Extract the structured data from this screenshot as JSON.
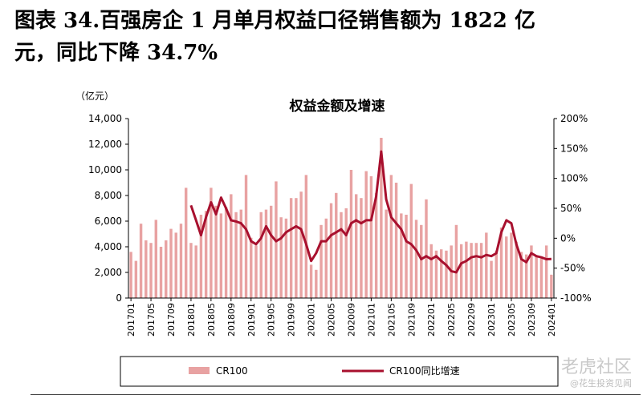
{
  "figure": {
    "heading_line1": "图表 34.百强房企 1 月单月权益口径销售额为 1822 亿",
    "heading_line2": "元，同比下降 34.7%"
  },
  "watermark": {
    "main": "老虎社区",
    "sub": "@花生投资见闻"
  },
  "chart_data": {
    "type": "bar+line",
    "title": "权益金额及增速",
    "y_unit": "（亿元）",
    "ylim_left": [
      0,
      14000
    ],
    "yticks_left": [
      "0",
      "2,000",
      "4,000",
      "6,000",
      "8,000",
      "10,000",
      "12,000",
      "14,000"
    ],
    "ylim_right": [
      -100,
      200
    ],
    "yticks_right": [
      "-100%",
      "-50%",
      "0%",
      "50%",
      "100%",
      "150%",
      "200%"
    ],
    "xtick_labels": [
      "201701",
      "201705",
      "201709",
      "201801",
      "201805",
      "201809",
      "201901",
      "201905",
      "201909",
      "202001",
      "202005",
      "202009",
      "202101",
      "202105",
      "202109",
      "202201",
      "202205",
      "202209",
      "202301",
      "202305",
      "202309",
      "202401"
    ],
    "grid": false,
    "legend_position": "bottom",
    "colors": {
      "bar": "#e8a2a2",
      "line": "#a8102e"
    },
    "x": [
      "201701",
      "201702",
      "201703",
      "201704",
      "201705",
      "201706",
      "201707",
      "201708",
      "201709",
      "201710",
      "201711",
      "201712",
      "201801",
      "201802",
      "201803",
      "201804",
      "201805",
      "201806",
      "201807",
      "201808",
      "201809",
      "201810",
      "201811",
      "201812",
      "201901",
      "201902",
      "201903",
      "201904",
      "201905",
      "201906",
      "201907",
      "201908",
      "201909",
      "201910",
      "201911",
      "201912",
      "202001",
      "202002",
      "202003",
      "202004",
      "202005",
      "202006",
      "202007",
      "202008",
      "202009",
      "202010",
      "202011",
      "202012",
      "202101",
      "202102",
      "202103",
      "202104",
      "202105",
      "202106",
      "202107",
      "202108",
      "202109",
      "202110",
      "202111",
      "202112",
      "202201",
      "202202",
      "202203",
      "202204",
      "202205",
      "202206",
      "202207",
      "202208",
      "202209",
      "202210",
      "202211",
      "202212",
      "202301",
      "202302",
      "202303",
      "202304",
      "202305",
      "202306",
      "202307",
      "202308",
      "202309",
      "202310",
      "202311",
      "202312",
      "202401"
    ],
    "series": [
      {
        "name": "CR100",
        "type": "bar",
        "values": [
          3600,
          2900,
          5800,
          4500,
          4300,
          6100,
          4000,
          4500,
          5400,
          5100,
          5800,
          8600,
          4300,
          4100,
          6500,
          6800,
          8600,
          7200,
          6600,
          7100,
          8100,
          6700,
          6900,
          9600,
          4700,
          4100,
          6700,
          6900,
          7200,
          9100,
          6300,
          6200,
          7800,
          7800,
          8300,
          9600,
          2600,
          2200,
          5700,
          6200,
          7400,
          8200,
          6700,
          7000,
          10000,
          8100,
          7800,
          9900,
          9500,
          8200,
          12500,
          6900,
          9600,
          9000,
          6600,
          6500,
          8900,
          6100,
          5700,
          7700,
          4200,
          3700,
          3800,
          3700,
          4100,
          5700,
          4200,
          4400,
          4300,
          4300,
          4300,
          5100,
          2900,
          3700,
          5500,
          4800,
          5100,
          4400,
          3600,
          3400,
          4100,
          3300,
          3100,
          4100,
          1822
        ]
      },
      {
        "name": "CR100同比增速",
        "type": "line",
        "axis": "right",
        "values": [
          null,
          null,
          null,
          null,
          null,
          null,
          null,
          null,
          null,
          null,
          null,
          null,
          55,
          30,
          5,
          35,
          60,
          40,
          68,
          50,
          30,
          28,
          25,
          15,
          -5,
          -10,
          0,
          20,
          5,
          -5,
          0,
          10,
          15,
          20,
          15,
          -10,
          -38,
          -25,
          -5,
          -5,
          5,
          10,
          15,
          5,
          25,
          30,
          25,
          30,
          30,
          70,
          145,
          65,
          35,
          25,
          15,
          -5,
          -10,
          -20,
          -35,
          -30,
          -35,
          -30,
          -38,
          -45,
          -55,
          -57,
          -42,
          -38,
          -32,
          -30,
          -32,
          -28,
          -30,
          -25,
          10,
          30,
          25,
          -10,
          -35,
          -40,
          -25,
          -30,
          -32,
          -35,
          -34.7
        ]
      }
    ]
  }
}
